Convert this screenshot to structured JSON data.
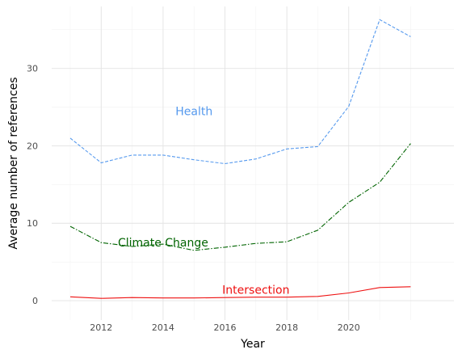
{
  "chart_data": {
    "type": "line",
    "xlabel": "Year",
    "ylabel": "Average number of references",
    "xlim": [
      2010.4,
      2023.4
    ],
    "ylim": [
      -2.5,
      38
    ],
    "x_ticks": [
      2012,
      2014,
      2016,
      2018,
      2020
    ],
    "x_tick_labels": [
      "2012",
      "2014",
      "2016",
      "2018",
      "2020"
    ],
    "y_ticks": [
      0,
      10,
      20,
      30
    ],
    "y_tick_labels": [
      "0",
      "10",
      "20",
      "30"
    ],
    "grid": true,
    "legend": "none (direct labels)",
    "x": [
      2011,
      2012,
      2013,
      2014,
      2015,
      2016,
      2017,
      2018,
      2019,
      2020,
      2021,
      2022
    ],
    "series": [
      {
        "name": "Health",
        "color": "#5599ee",
        "dash": "dashed",
        "values": [
          21.0,
          17.8,
          18.8,
          18.8,
          18.2,
          17.7,
          18.3,
          19.6,
          19.9,
          25.1,
          36.3,
          34.1
        ],
        "label_x": 2015.0,
        "label_y": 24.5
      },
      {
        "name": "Climate Change",
        "color": "#006400",
        "dash": "dashdot",
        "values": [
          9.6,
          7.5,
          7.0,
          7.3,
          6.5,
          6.9,
          7.4,
          7.6,
          9.1,
          12.7,
          15.3,
          20.3
        ],
        "label_x": 2014.0,
        "label_y": 7.5
      },
      {
        "name": "Intersection",
        "color": "#ee1111",
        "dash": "solid",
        "values": [
          0.5,
          0.3,
          0.4,
          0.35,
          0.35,
          0.4,
          0.45,
          0.45,
          0.55,
          1.0,
          1.7,
          1.8
        ],
        "label_x": 2017.0,
        "label_y": 1.4
      }
    ]
  }
}
